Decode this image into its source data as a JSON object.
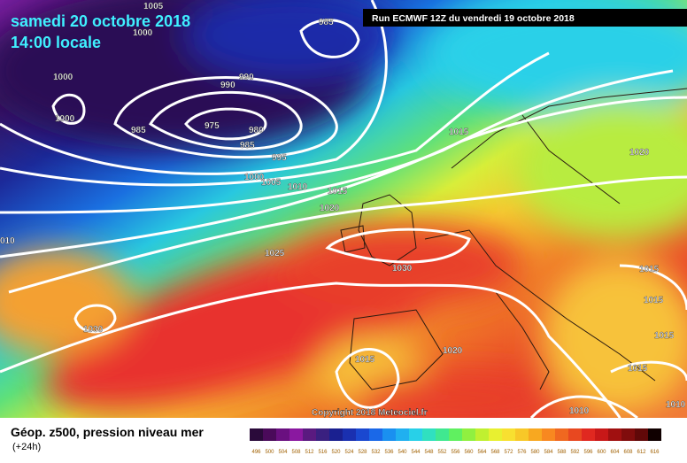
{
  "header": {
    "date": "samedi 20 octobre 2018",
    "time": "14:00 locale",
    "run": "Run ECMWF 12Z du vendredi 19 octobre 2018"
  },
  "isobar_labels": [
    "1005",
    "985",
    "1000",
    "1000",
    "990",
    "990",
    "1000",
    "985",
    "975",
    "980",
    "985",
    "995",
    "1015",
    "1020",
    "1000",
    "1005",
    "1010",
    "1015",
    "1020",
    "010",
    "1025",
    "1030",
    "1015",
    "1015",
    "1030",
    "1015",
    "1015",
    "1020",
    "1015",
    "1010",
    "1010"
  ],
  "copyright": "Copyright 2018 Meteociel.fr",
  "legend": {
    "title": "Géop. z500, pression niveau mer",
    "subtitle": "(+24h)",
    "scale_labels": [
      "496",
      "500",
      "504",
      "508",
      "512",
      "516",
      "520",
      "524",
      "528",
      "532",
      "536",
      "540",
      "544",
      "548",
      "552",
      "556",
      "560",
      "564",
      "568",
      "572",
      "576",
      "580",
      "584",
      "588",
      "592",
      "596",
      "600",
      "604",
      "608",
      "612",
      "616"
    ]
  }
}
